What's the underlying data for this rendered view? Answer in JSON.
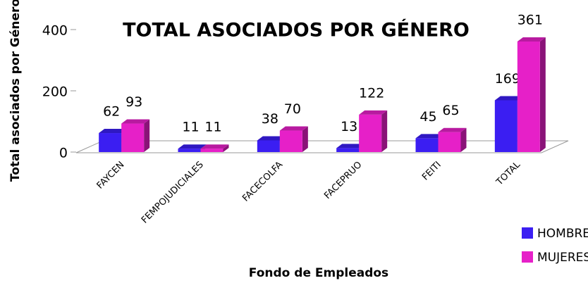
{
  "chart_data": {
    "type": "bar3d",
    "title": "TOTAL ASOCIADOS POR GÉNERO",
    "x_label": "Fondo de Empleados",
    "y_label": "Total asociados por Género",
    "categories": [
      "FAYCEN",
      "FEMPOJUDICIALES",
      "FACECOLFA",
      "FACEPRUO",
      "FEITI",
      "TOTAL"
    ],
    "series": [
      {
        "name": "HOMBRES",
        "color": "#3b1ef2",
        "values": [
          62,
          11,
          38,
          13,
          45,
          169
        ]
      },
      {
        "name": "MUJERES",
        "color": "#e620c8",
        "values": [
          93,
          11,
          70,
          122,
          65,
          361
        ]
      }
    ],
    "ylim": [
      0,
      400
    ],
    "yticks": [
      0,
      200,
      400
    ],
    "legend": "bottom-right"
  }
}
